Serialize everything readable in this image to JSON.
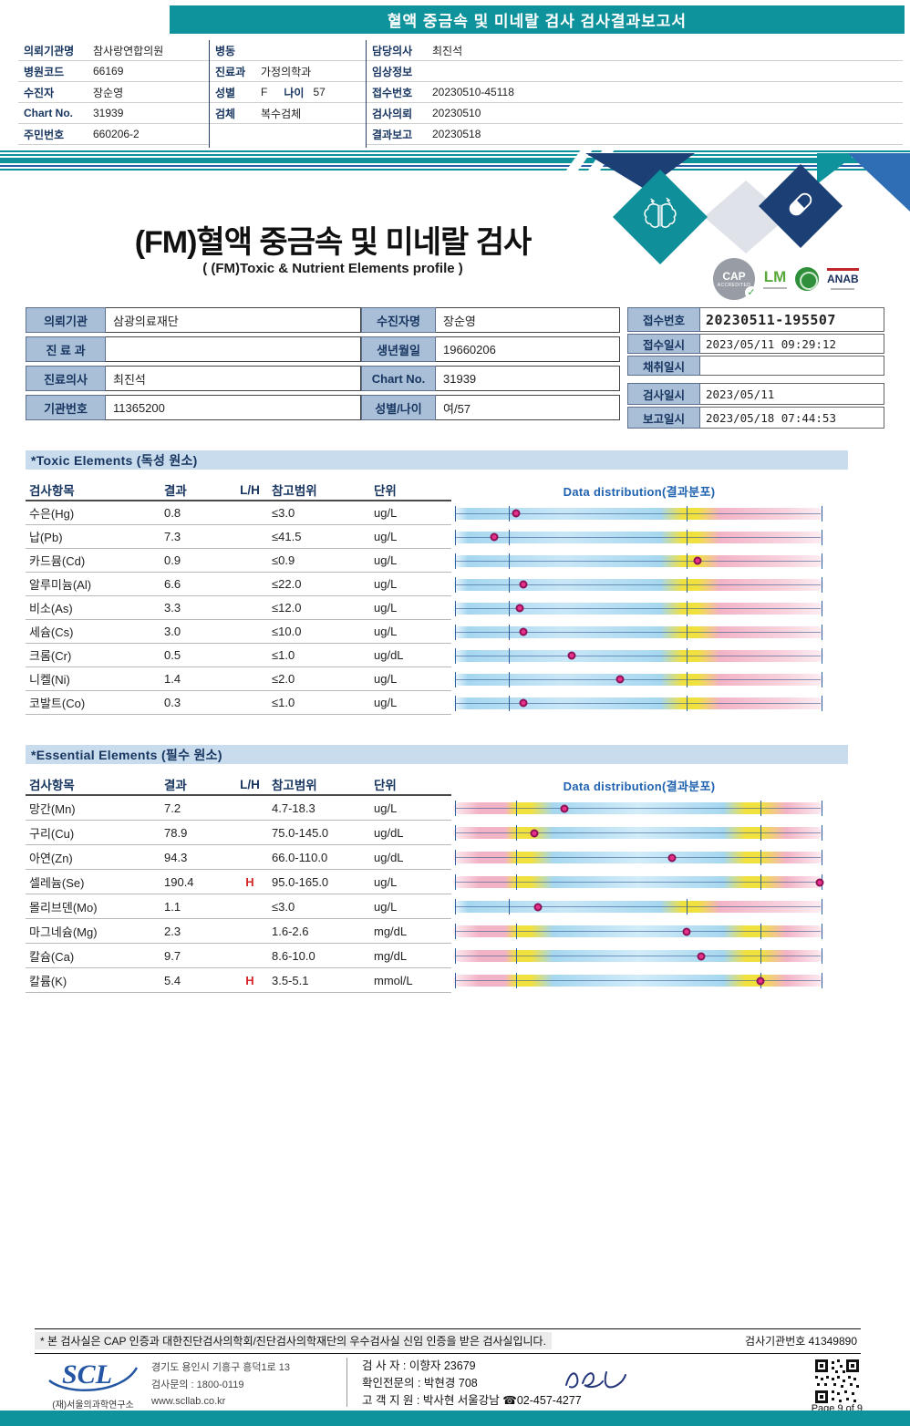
{
  "colors": {
    "teal": "#0e939c",
    "navy": "#1c3f76",
    "accent_blue": "#1f62b0",
    "label_bg": "#a9bfd8",
    "section_bg": "#c8dcee",
    "marker": "#e8318a",
    "flag_red": "#d6232a"
  },
  "banner": {
    "title": "혈액 중금속 및 미네랄 검사 검사결과보고서"
  },
  "patient_header": {
    "columns": [
      [
        {
          "label": "의뢰기관명",
          "value": "참사랑연합의원"
        },
        {
          "label": "병원코드",
          "value": "66169"
        },
        {
          "label": "수진자",
          "value": "장순영"
        },
        {
          "label": "Chart No.",
          "value": "31939"
        },
        {
          "label": "주민번호",
          "value": "660206-2"
        }
      ],
      [
        {
          "label": "병동",
          "value": ""
        },
        {
          "label": "진료과",
          "value": "가정의학과"
        },
        {
          "label": "성별",
          "value": "F",
          "label2": "나이",
          "value2": "57"
        },
        {
          "label": "검체",
          "value": "복수검체"
        }
      ],
      [
        {
          "label": "담당의사",
          "value": "최진석"
        },
        {
          "label": "임상정보",
          "value": ""
        },
        {
          "label": "접수번호",
          "value": "20230510-45118"
        },
        {
          "label": "검사의뢰",
          "value": "20230510"
        },
        {
          "label": "결과보고",
          "value": "20230518"
        }
      ]
    ]
  },
  "titles": {
    "main": "(FM)혈액 중금속 및 미네랄 검사",
    "sub": "( (FM)Toxic & Nutrient Elements profile )"
  },
  "badges": {
    "cap": "CAP",
    "cap_sub": "ACCREDITED",
    "check": "✓",
    "lm": "LM",
    "anab": "ANAB"
  },
  "info_panel": {
    "left_rows": [
      {
        "label": "의뢰기관",
        "value": "삼광의료재단",
        "label2": "수진자명",
        "value2": "장순영"
      },
      {
        "label": "진 료 과",
        "value": "",
        "label2": "생년월일",
        "value2": "19660206"
      },
      {
        "label": "진료의사",
        "value": "최진석",
        "label2": "Chart No.",
        "value2": "31939"
      },
      {
        "label": "기관번호",
        "value": "11365200",
        "label2": "성별/나이",
        "value2": "여/57"
      }
    ],
    "right_rows": [
      {
        "label": "접수번호",
        "value": "20230511-195507"
      },
      {
        "label": "접수일시",
        "value": "2023/05/11 09:29:12"
      },
      {
        "label": "채취일시",
        "value": ""
      },
      {
        "label": "검사일시",
        "value": "2023/05/11"
      },
      {
        "label": "보고일시",
        "value": "2023/05/18 07:44:53"
      }
    ]
  },
  "toxic_table": {
    "section_title": "*Toxic Elements (독성 원소)",
    "headers": {
      "name": "검사항목",
      "result": "결과",
      "lh": "L/H",
      "range": "참고범위",
      "unit": "단위",
      "dist": "Data distribution(결과분포)"
    },
    "bar_style": "toxic",
    "rows": [
      {
        "name": "수은(Hg)",
        "result": "0.8",
        "lh": "",
        "range": "≤3.0",
        "unit": "ug/L",
        "marker_pct": 17
      },
      {
        "name": "납(Pb)",
        "result": "7.3",
        "lh": "",
        "range": "≤41.5",
        "unit": "ug/L",
        "marker_pct": 11
      },
      {
        "name": "카드뮴(Cd)",
        "result": "0.9",
        "lh": "",
        "range": "≤0.9",
        "unit": "ug/L",
        "marker_pct": 66
      },
      {
        "name": "알루미늄(Al)",
        "result": "6.6",
        "lh": "",
        "range": "≤22.0",
        "unit": "ug/L",
        "marker_pct": 19
      },
      {
        "name": "비소(As)",
        "result": "3.3",
        "lh": "",
        "range": "≤12.0",
        "unit": "ug/L",
        "marker_pct": 18
      },
      {
        "name": "세슘(Cs)",
        "result": "3.0",
        "lh": "",
        "range": "≤10.0",
        "unit": "ug/L",
        "marker_pct": 19
      },
      {
        "name": "크롬(Cr)",
        "result": "0.5",
        "lh": "",
        "range": "≤1.0",
        "unit": "ug/dL",
        "marker_pct": 32
      },
      {
        "name": "니켈(Ni)",
        "result": "1.4",
        "lh": "",
        "range": "≤2.0",
        "unit": "ug/L",
        "marker_pct": 45
      },
      {
        "name": "코발트(Co)",
        "result": "0.3",
        "lh": "",
        "range": "≤1.0",
        "unit": "ug/L",
        "marker_pct": 19
      }
    ]
  },
  "essential_table": {
    "section_title": "*Essential Elements (필수 원소)",
    "headers": {
      "name": "검사항목",
      "result": "결과",
      "lh": "L/H",
      "range": "참고범위",
      "unit": "단위",
      "dist": "Data distribution(결과분포)"
    },
    "bar_style": "essential",
    "rows": [
      {
        "name": "망간(Mn)",
        "result": "7.2",
        "lh": "",
        "range": "4.7-18.3",
        "unit": "ug/L",
        "marker_pct": 30
      },
      {
        "name": "구리(Cu)",
        "result": "78.9",
        "lh": "",
        "range": "75.0-145.0",
        "unit": "ug/dL",
        "marker_pct": 22
      },
      {
        "name": "아연(Zn)",
        "result": "94.3",
        "lh": "",
        "range": "66.0-110.0",
        "unit": "ug/dL",
        "marker_pct": 59
      },
      {
        "name": "셀레늄(Se)",
        "result": "190.4",
        "lh": "H",
        "range": "95.0-165.0",
        "unit": "ug/L",
        "marker_pct": 99
      },
      {
        "name": "몰리브덴(Mo)",
        "result": "1.1",
        "lh": "",
        "range": "≤3.0",
        "unit": "ug/L",
        "marker_pct": 23,
        "bar_style": "toxic"
      },
      {
        "name": "마그네슘(Mg)",
        "result": "2.3",
        "lh": "",
        "range": "1.6-2.6",
        "unit": "mg/dL",
        "marker_pct": 63
      },
      {
        "name": "칼슘(Ca)",
        "result": "9.7",
        "lh": "",
        "range": "8.6-10.0",
        "unit": "mg/dL",
        "marker_pct": 67
      },
      {
        "name": "칼륨(K)",
        "result": "5.4",
        "lh": "H",
        "range": "3.5-5.1",
        "unit": "mmol/L",
        "marker_pct": 83
      }
    ]
  },
  "footer": {
    "note": "* 본 검사실은 CAP 인증과 대한진단검사의학회/진단검사의학재단의 우수검사실 신임 인증을 받은 검사실입니다.",
    "lab_no": "검사기관번호 41349890",
    "logo": "SCL",
    "org": "(재)서울의과학연구소",
    "address": "경기도 용인시 기흥구 흥덕1로 13",
    "phone": "검사문의 : 1800-0119",
    "website": "www.scllab.co.kr",
    "examiner": "검 사 자 : 이향자 23679",
    "verifier": "확인전문의 : 박현경 708",
    "support": "고 객 지 원 : 박사현 서울강남 ☎02-457-4277",
    "page": "Page 9 of 9"
  }
}
